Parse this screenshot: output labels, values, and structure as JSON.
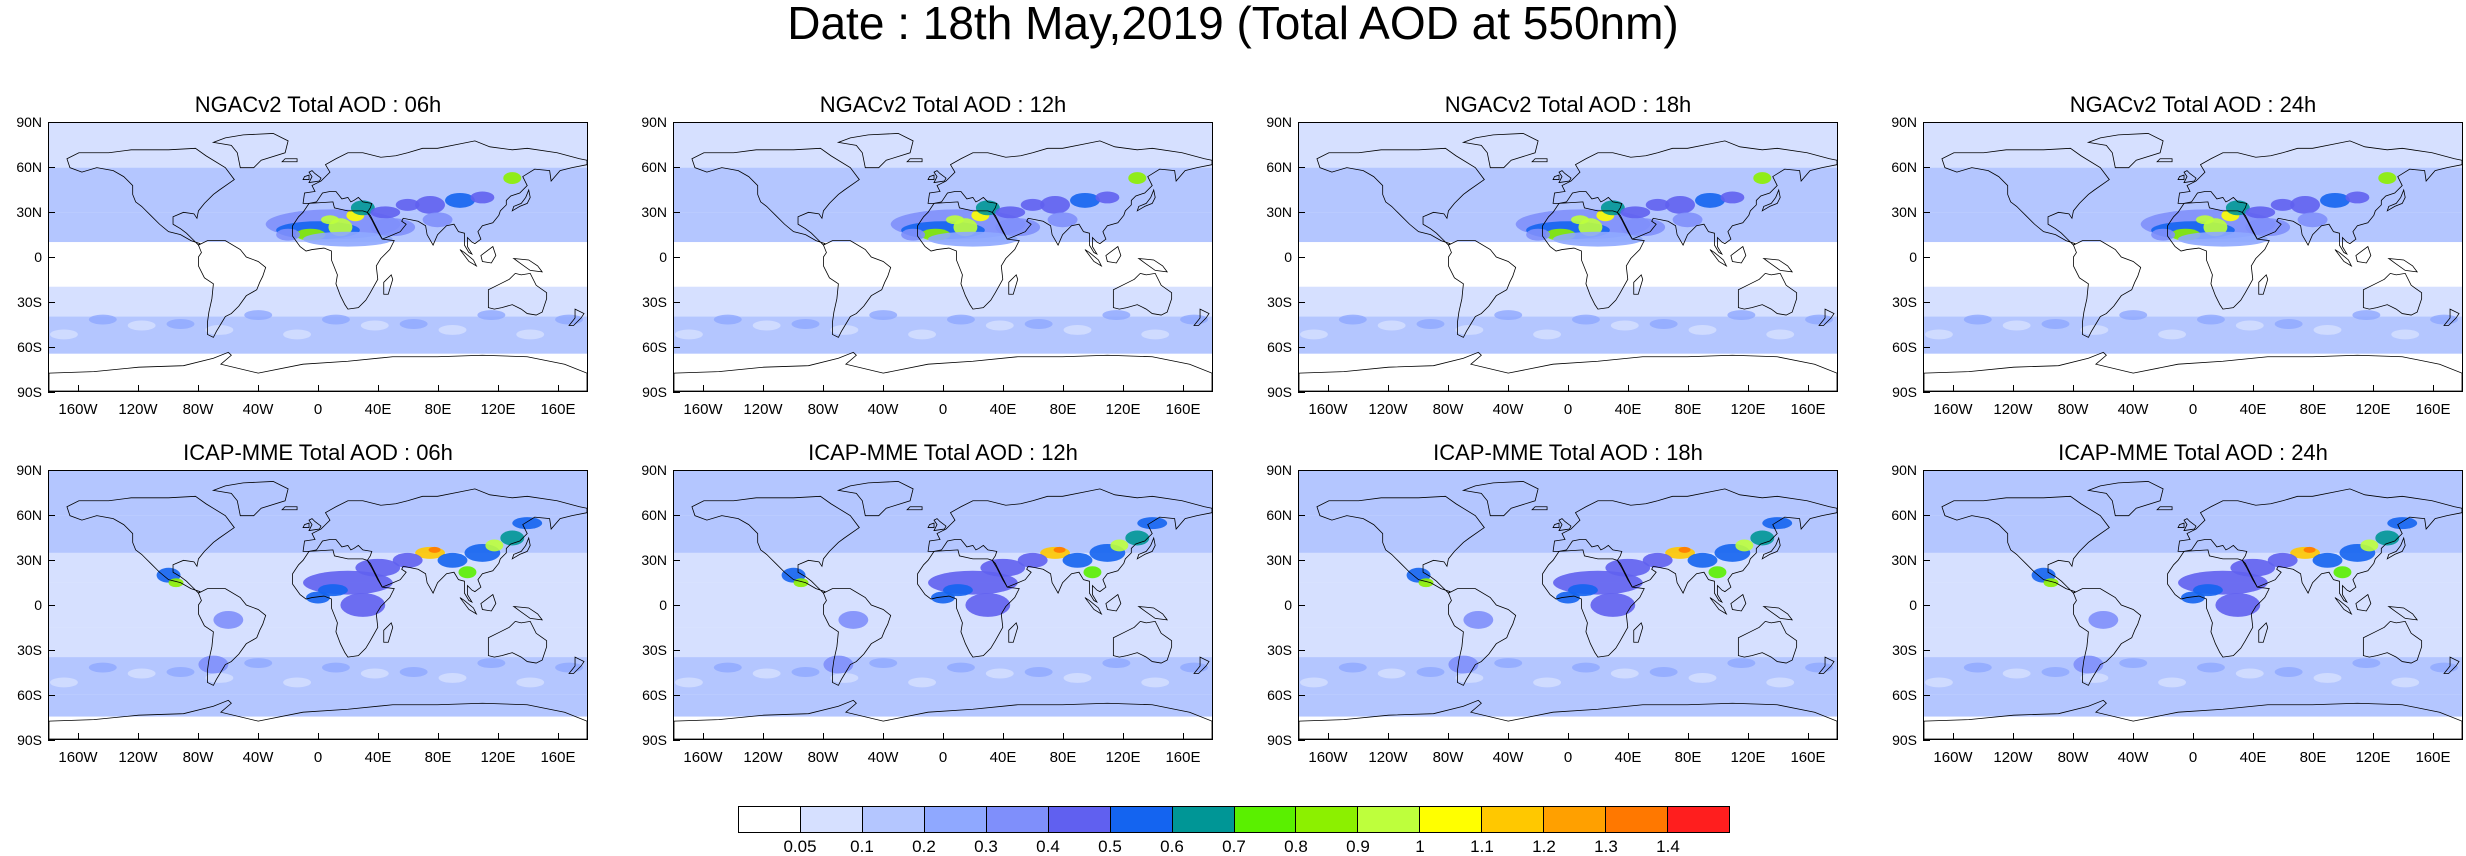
{
  "title": "Date : 18th May,2019 (Total AOD at 550nm)",
  "panels": [
    {
      "title": "NGACv2 Total AOD : 06h",
      "model": "ngac"
    },
    {
      "title": "NGACv2 Total AOD : 12h",
      "model": "ngac"
    },
    {
      "title": "NGACv2 Total AOD : 18h",
      "model": "ngac"
    },
    {
      "title": "NGACv2 Total AOD : 24h",
      "model": "ngac"
    },
    {
      "title": "ICAP-MME Total AOD : 06h",
      "model": "icap"
    },
    {
      "title": "ICAP-MME Total AOD : 12h",
      "model": "icap"
    },
    {
      "title": "ICAP-MME Total AOD : 18h",
      "model": "icap"
    },
    {
      "title": "ICAP-MME Total AOD : 24h",
      "model": "icap"
    }
  ],
  "lat_labels": [
    "90N",
    "60N",
    "30N",
    "0",
    "30S",
    "60S",
    "90S"
  ],
  "lon_labels": [
    "160W",
    "120W",
    "80W",
    "40W",
    "0",
    "40E",
    "80E",
    "120E",
    "160E"
  ],
  "colorbar": {
    "labels": [
      "0.05",
      "0.1",
      "0.2",
      "0.3",
      "0.4",
      "0.5",
      "0.6",
      "0.7",
      "0.8",
      "0.9",
      "1",
      "1.1",
      "1.2",
      "1.3",
      "1.4"
    ],
    "colors": [
      "#ffffff",
      "#d6e0ff",
      "#b4c6ff",
      "#8fa8ff",
      "#7f8ffb",
      "#6060f0",
      "#1464f0",
      "#009696",
      "#5af000",
      "#8cf000",
      "#beff3c",
      "#ffff00",
      "#ffc800",
      "#ffa000",
      "#ff7800",
      "#ff1e1e"
    ]
  }
}
